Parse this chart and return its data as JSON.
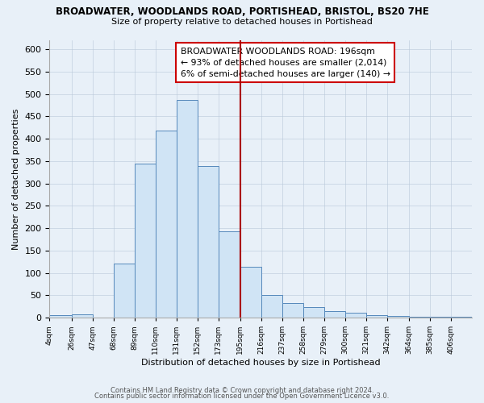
{
  "title1": "BROADWATER, WOODLANDS ROAD, PORTISHEAD, BRISTOL, BS20 7HE",
  "title2": "Size of property relative to detached houses in Portishead",
  "xlabel": "Distribution of detached houses by size in Portishead",
  "ylabel": "Number of detached properties",
  "footnote1": "Contains HM Land Registry data © Crown copyright and database right 2024.",
  "footnote2": "Contains public sector information licensed under the Open Government Licence v3.0.",
  "bar_edges": [
    4,
    26,
    47,
    68,
    89,
    110,
    131,
    152,
    173,
    195,
    216,
    237,
    258,
    279,
    300,
    321,
    342,
    364,
    385,
    406,
    427
  ],
  "bar_heights": [
    5,
    8,
    0,
    120,
    345,
    418,
    487,
    338,
    192,
    113,
    50,
    33,
    24,
    15,
    10,
    5,
    3,
    2,
    2,
    2
  ],
  "bar_color": "#d0e4f5",
  "bar_edgecolor": "#5588bb",
  "vline_x": 195,
  "vline_color": "#aa0000",
  "ylim": [
    0,
    620
  ],
  "yticks": [
    0,
    50,
    100,
    150,
    200,
    250,
    300,
    350,
    400,
    450,
    500,
    550,
    600
  ],
  "annotation_title": "BROADWATER WOODLANDS ROAD: 196sqm",
  "annotation_line1": "← 93% of detached houses are smaller (2,014)",
  "annotation_line2": "6% of semi-detached houses are larger (140) →",
  "annotation_box_facecolor": "#ffffff",
  "annotation_box_edgecolor": "#cc0000",
  "bg_color": "#e8f0f8",
  "grid_color": "#b8c8d8",
  "spine_color": "#aaaaaa"
}
